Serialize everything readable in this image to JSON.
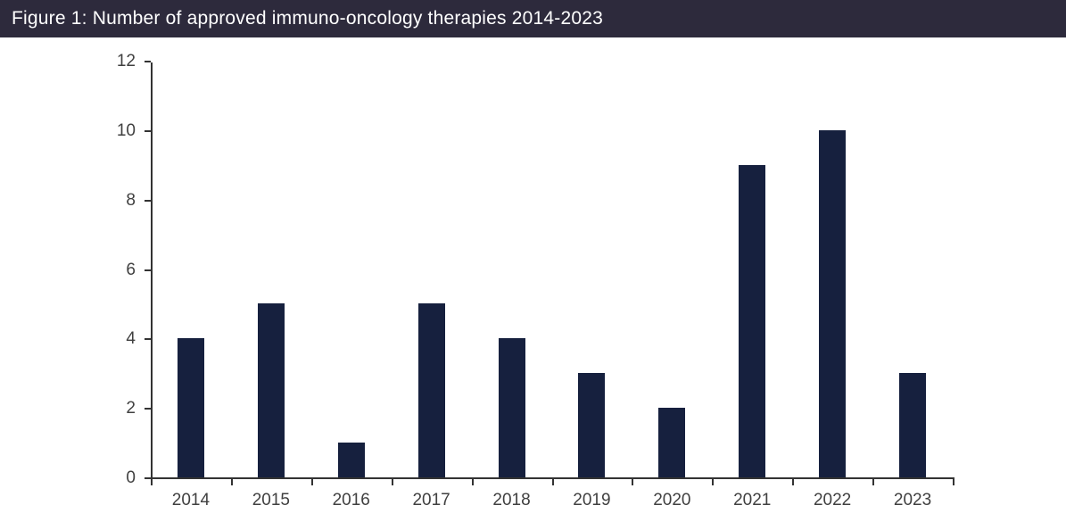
{
  "header": {
    "title": "Figure 1: Number of approved immuno-oncology therapies 2014-2023",
    "background_color": "#2d2a3c",
    "text_color": "#ffffff"
  },
  "chart_data": {
    "type": "bar",
    "title": "Figure 1: Number of approved immuno-oncology therapies 2014-2023",
    "categories": [
      "2014",
      "2015",
      "2016",
      "2017",
      "2018",
      "2019",
      "2020",
      "2021",
      "2022",
      "2023"
    ],
    "values": [
      4,
      5,
      1,
      5,
      4,
      3,
      2,
      9,
      10,
      3
    ],
    "xlabel": "",
    "ylabel": "",
    "ylim": [
      0,
      12
    ],
    "yticks": [
      0,
      2,
      4,
      6,
      8,
      10,
      12
    ],
    "grid": false,
    "legend_position": "none",
    "bar_color": "#16203e",
    "axis_color": "#333333",
    "label_color": "#404040"
  }
}
